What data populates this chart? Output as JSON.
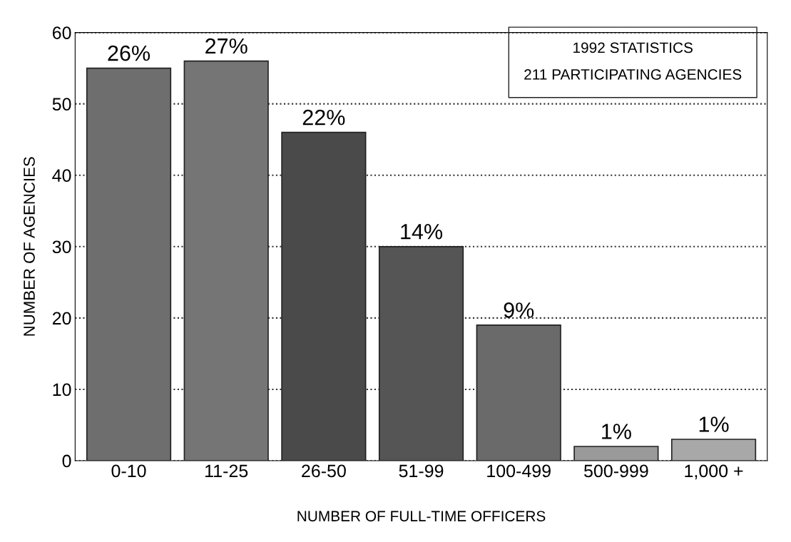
{
  "chart_data": {
    "type": "bar",
    "xlabel": "NUMBER OF FULL-TIME OFFICERS",
    "ylabel": "NUMBER OF AGENCIES",
    "categories": [
      "0-10",
      "11-25",
      "26-50",
      "51-99",
      "100-499",
      "500-999",
      "1,000 +"
    ],
    "values": [
      55,
      56,
      46,
      30,
      19,
      2,
      3
    ],
    "colors": [
      "#6e6e6e",
      "#757575",
      "#4a4a4a",
      "#555555",
      "#6a6a6a",
      "#9a9a9a",
      "#a8a8a8"
    ],
    "ylim": [
      0,
      60
    ],
    "yticks": [
      0,
      10,
      20,
      30,
      40,
      50,
      60
    ],
    "grid": "y",
    "line_style": "dotted",
    "annotations": [
      "1992 STATISTICS\n211 PARTICIPATING AGENCIES",
      {
        "text": "26%",
        "x": "0-10",
        "y": 55
      },
      {
        "text": "27%",
        "x": "11-25",
        "y": 56
      },
      {
        "text": "22%",
        "x": "26-50",
        "y": 46
      },
      {
        "text": "14%",
        "x": "51-99",
        "y": 30
      },
      {
        "text": "9%",
        "x": "100-499",
        "y": 19
      },
      {
        "text": "1%",
        "x": "500-999",
        "y": 2
      },
      {
        "text": "1%",
        "x": "1,000 +",
        "y": 3
      }
    ]
  }
}
